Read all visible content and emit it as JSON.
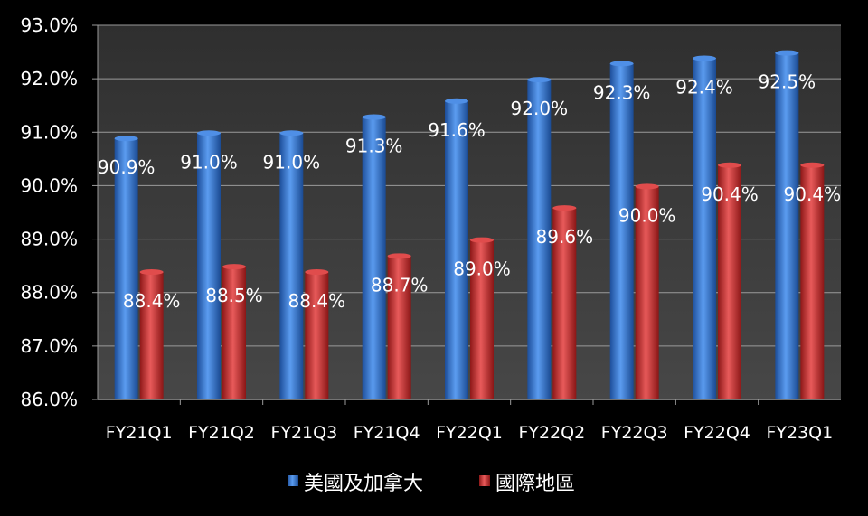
{
  "chart_data": {
    "type": "bar",
    "categories": [
      "FY21Q1",
      "FY21Q2",
      "FY21Q3",
      "FY21Q4",
      "FY22Q1",
      "FY22Q2",
      "FY22Q3",
      "FY22Q4",
      "FY23Q1"
    ],
    "series": [
      {
        "name": "美國及加拿大",
        "values": [
          90.9,
          91.0,
          91.0,
          91.3,
          91.6,
          92.0,
          92.3,
          92.4,
          92.5
        ],
        "labels": [
          "90.9%",
          "91.0%",
          "91.0%",
          "91.3%",
          "91.6%",
          "92.0%",
          "92.3%",
          "92.4%",
          "92.5%"
        ],
        "color": "#3a7bd5"
      },
      {
        "name": "國際地區",
        "values": [
          88.4,
          88.5,
          88.4,
          88.7,
          89.0,
          89.6,
          90.0,
          90.4,
          90.4
        ],
        "labels": [
          "88.4%",
          "88.5%",
          "88.4%",
          "88.7%",
          "89.0%",
          "89.6%",
          "90.0%",
          "90.4%",
          "90.4%"
        ],
        "color": "#d23a3a"
      }
    ],
    "y_ticks": [
      "86.0%",
      "87.0%",
      "88.0%",
      "89.0%",
      "90.0%",
      "91.0%",
      "92.0%",
      "93.0%"
    ],
    "title": "",
    "xlabel": "",
    "ylabel": "",
    "ylim": [
      86,
      93
    ],
    "grid": true,
    "legend_position": "bottom-center",
    "colors": {
      "background": "#000000",
      "plot_area": "#3b3b3b",
      "gridline": "#9a9a9a",
      "text": "#ffffff"
    }
  }
}
